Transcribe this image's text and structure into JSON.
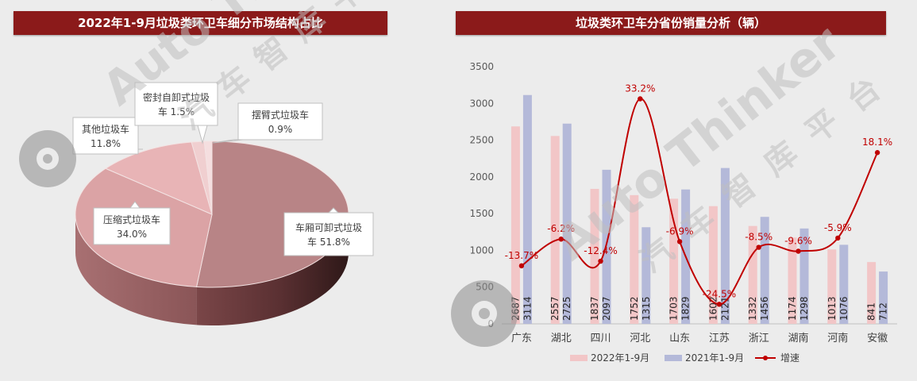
{
  "chart_data": [
    {
      "type": "pie",
      "title": "2022年1-9月垃圾类环卫车细分市场结构占比",
      "slices": [
        {
          "label": "车厢可卸式垃圾车",
          "value": 51.8,
          "display": "车厢可卸式垃圾车 51.8%",
          "line1": "车厢可卸式垃圾",
          "line2": "车 51.8%",
          "color": "#b88486"
        },
        {
          "label": "压缩式垃圾车",
          "value": 34.0,
          "display": "压缩式垃圾车 34.0%",
          "line1": "压缩式垃圾车",
          "line2": "34.0%",
          "color": "#dba3a5"
        },
        {
          "label": "其他垃圾车",
          "value": 11.8,
          "display": "其他垃圾车 11.8%",
          "line1": "其他垃圾车",
          "line2": "11.8%",
          "color": "#e8b4b6"
        },
        {
          "label": "密封自卸式垃圾车",
          "value": 1.5,
          "display": "密封自卸式垃圾车 1.5%",
          "line1": "密封自卸式垃圾",
          "line2": "车 1.5%",
          "color": "#f0cfd0"
        },
        {
          "label": "摆臂式垃圾车",
          "value": 0.9,
          "display": "摆臂式垃圾车 0.9%",
          "line1": "摆臂式垃圾车",
          "line2": "0.9%",
          "color": "#f5dedf"
        }
      ]
    },
    {
      "type": "bar",
      "title": "垃圾类环卫车分省份销量分析（辆）",
      "categories": [
        "广东",
        "湖北",
        "四川",
        "河北",
        "山东",
        "江苏",
        "浙江",
        "湖南",
        "河南",
        "安徽"
      ],
      "series": [
        {
          "name": "2022年1-9月",
          "values": [
            2687,
            2557,
            1837,
            1752,
            1703,
            1602,
            1332,
            1174,
            1013,
            841
          ],
          "color": "#f2c6c7"
        },
        {
          "name": "2021年1-9月",
          "values": [
            3114,
            2725,
            2097,
            1315,
            1829,
            2121,
            1456,
            1298,
            1076,
            712
          ],
          "color": "#b4b9d9"
        }
      ],
      "line_series": {
        "name": "增速",
        "values": [
          "-13.7%",
          "-6.2%",
          "-12.4%",
          "33.2%",
          "-6.9%",
          "-24.5%",
          "-8.5%",
          "-9.6%",
          "-5.9%",
          "18.1%"
        ],
        "color": "#c00000"
      },
      "yticks": [
        "0",
        "500",
        "1000",
        "1500",
        "2000",
        "2500",
        "3000",
        "3500"
      ],
      "ylim": [
        0,
        3500
      ],
      "legend": "bottom"
    }
  ],
  "watermark": {
    "brand": "Auto Thinker",
    "cn": "汽车智库平台"
  }
}
